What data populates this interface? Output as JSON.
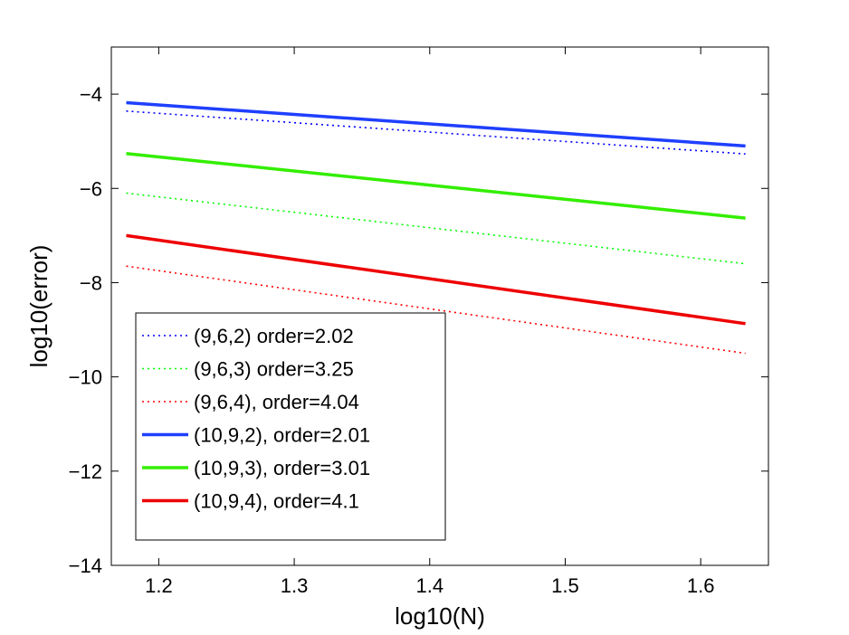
{
  "chart_data": {
    "type": "line",
    "xlabel": "log10(N)",
    "ylabel": "log10(error)",
    "xlim": [
      1.165,
      1.65
    ],
    "ylim": [
      -14,
      -3
    ],
    "xticks": [
      1.2,
      1.3,
      1.4,
      1.5,
      1.6
    ],
    "xtick_labels": [
      "1.2",
      "1.3",
      "1.4",
      "1.5",
      "1.6"
    ],
    "yticks": [
      -14,
      -12,
      -10,
      -8,
      -6,
      -4
    ],
    "ytick_labels": [
      "−14",
      "−12",
      "−10",
      "−8",
      "−6",
      "−4"
    ],
    "grid": false,
    "legend_position": "bottom-left",
    "series": [
      {
        "name": "(9,6,2) order=2.02",
        "color": "#0000ff",
        "style": "dotted",
        "x": [
          1.176,
          1.633
        ],
        "y": [
          -4.36,
          -5.27
        ]
      },
      {
        "name": "(9,6,3) order=3.25",
        "color": "#00ff00",
        "style": "dotted",
        "x": [
          1.176,
          1.633
        ],
        "y": [
          -6.1,
          -7.6
        ]
      },
      {
        "name": "(9,6,4), order=4.04",
        "color": "#ff0000",
        "style": "dotted",
        "x": [
          1.176,
          1.633
        ],
        "y": [
          -7.65,
          -9.5
        ]
      },
      {
        "name": "(10,9,2), order=2.01",
        "color": "#1f3fff",
        "style": "solid",
        "x": [
          1.176,
          1.633
        ],
        "y": [
          -4.18,
          -5.1
        ]
      },
      {
        "name": "(10,9,3), order=3.01",
        "color": "#33ee00",
        "style": "solid",
        "x": [
          1.176,
          1.633
        ],
        "y": [
          -5.26,
          -6.63
        ]
      },
      {
        "name": "(10,9,4), order=4.1",
        "color": "#ee0000",
        "style": "solid",
        "x": [
          1.176,
          1.633
        ],
        "y": [
          -7.0,
          -8.87
        ]
      }
    ]
  }
}
